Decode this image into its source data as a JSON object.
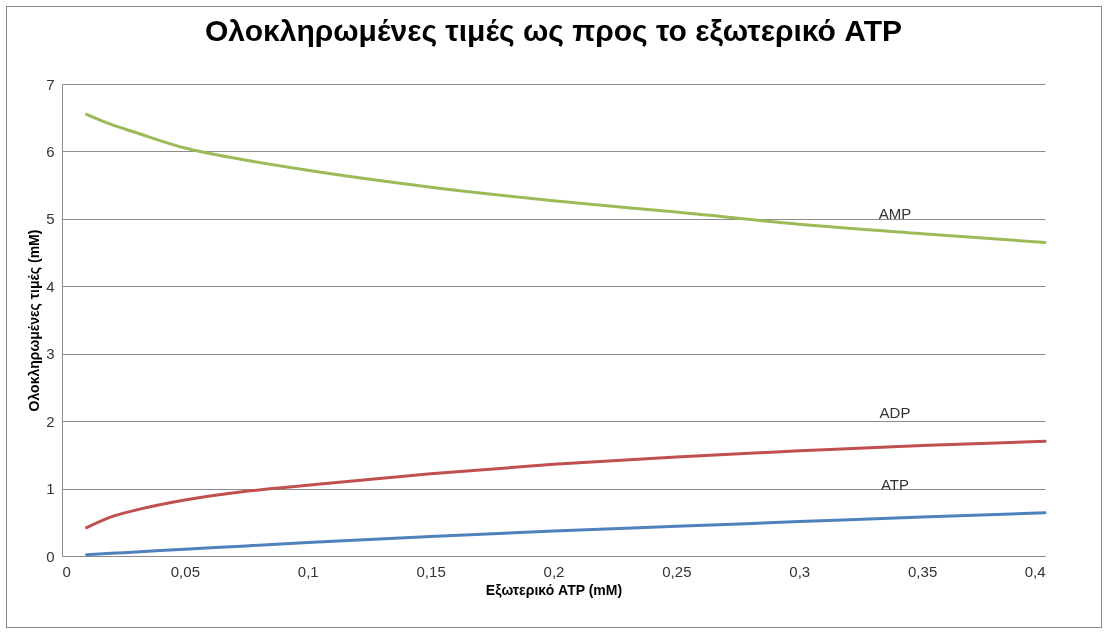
{
  "chart_data": {
    "type": "line",
    "title": "Ολοκληρωμένες τιμές ως προς το εξωτερικό ATP",
    "xlabel": "Εξωτερικό ATP (mM)",
    "ylabel": "Ολοκληρωμένες τιμές (mM)",
    "x": [
      0.01,
      0.02,
      0.03,
      0.05,
      0.075,
      0.1,
      0.15,
      0.2,
      0.25,
      0.3,
      0.35,
      0.4
    ],
    "series": [
      {
        "name": "AMP",
        "color": "#9bbb59",
        "values": [
          6.55,
          6.4,
          6.28,
          6.05,
          5.87,
          5.72,
          5.47,
          5.27,
          5.1,
          4.92,
          4.78,
          4.65
        ]
      },
      {
        "name": "ADP",
        "color": "#c0504d",
        "values": [
          0.42,
          0.58,
          0.68,
          0.83,
          0.96,
          1.05,
          1.22,
          1.36,
          1.47,
          1.56,
          1.64,
          1.7
        ]
      },
      {
        "name": "ATP",
        "color": "#4f81bd",
        "values": [
          0.02,
          0.04,
          0.06,
          0.1,
          0.15,
          0.2,
          0.29,
          0.37,
          0.44,
          0.51,
          0.58,
          0.64
        ]
      }
    ],
    "xlim": [
      0,
      0.4
    ],
    "xticks": [
      0,
      {
        "value": 0.05,
        "label": "0,05"
      },
      {
        "value": 0.1,
        "label": "0,1"
      },
      {
        "value": 0.15,
        "label": "0,15"
      },
      {
        "value": 0.2,
        "label": "0,2"
      },
      {
        "value": 0.25,
        "label": "0,25"
      },
      {
        "value": 0.3,
        "label": "0,3"
      },
      {
        "value": 0.35,
        "label": "0,35"
      },
      {
        "value": 0.4,
        "label": "0,4"
      }
    ],
    "ylim": [
      0,
      7
    ],
    "yticks": [
      0,
      1,
      2,
      3,
      4,
      5,
      6,
      7
    ],
    "grid": "y",
    "legend": false,
    "line_style": "solid"
  }
}
